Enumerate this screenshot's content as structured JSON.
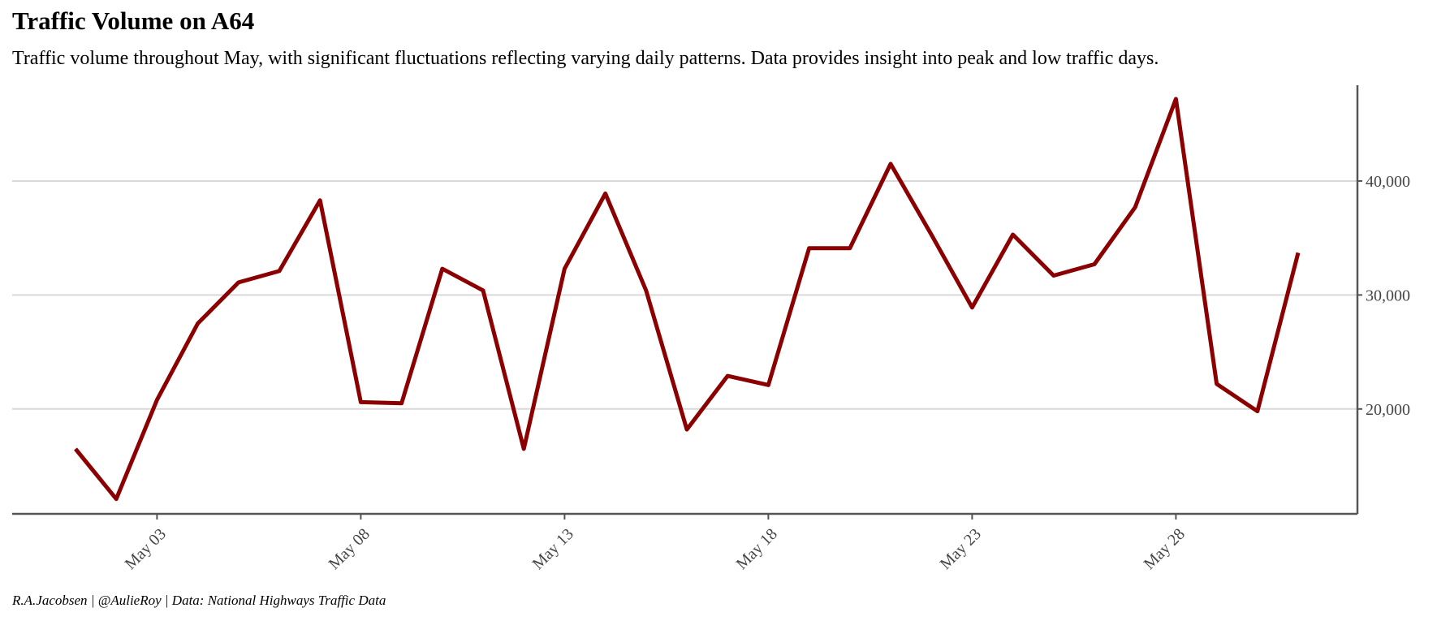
{
  "title": "Traffic Volume on A64",
  "subtitle": "Traffic volume throughout May, with significant fluctuations reflecting varying daily patterns. Data provides insight into peak and low traffic days.",
  "caption": "R.A.Jacobsen | @AulieRoy | Data: National Highways Traffic Data",
  "colors": {
    "line": "#8b0000",
    "grid": "#d9d9d9",
    "axis": "#555555",
    "tick_text": "#444444"
  },
  "chart_data": {
    "type": "line",
    "title": "Traffic Volume on A64",
    "subtitle": "Traffic volume throughout May, with significant fluctuations reflecting varying daily patterns. Data provides insight into peak and low traffic days.",
    "xlabel": "",
    "ylabel": "",
    "y_axis_position": "right",
    "grid": "horizontal major",
    "legend": "none",
    "xlim": [
      "May 01",
      "May 31"
    ],
    "ylim": [
      10800,
      48400
    ],
    "x_ticks": [
      "May 03",
      "May 08",
      "May 13",
      "May 18",
      "May 23",
      "May 28"
    ],
    "y_ticks": [
      20000,
      30000,
      40000
    ],
    "y_tick_labels": [
      "20,000",
      "30,000",
      "40,000"
    ],
    "x": [
      "May 01",
      "May 02",
      "May 03",
      "May 04",
      "May 05",
      "May 06",
      "May 07",
      "May 08",
      "May 09",
      "May 10",
      "May 11",
      "May 12",
      "May 13",
      "May 14",
      "May 15",
      "May 16",
      "May 17",
      "May 18",
      "May 19",
      "May 20",
      "May 21",
      "May 22",
      "May 23",
      "May 24",
      "May 25",
      "May 26",
      "May 27",
      "May 28",
      "May 29",
      "May 30",
      "May 31"
    ],
    "series": [
      {
        "values": [
          16500,
          12100,
          20800,
          27500,
          31100,
          32100,
          38300,
          20600,
          20500,
          32300,
          30400,
          16500,
          32300,
          38900,
          30400,
          18200,
          22900,
          22100,
          34100,
          34100,
          41500,
          35300,
          28900,
          35300,
          31700,
          32700,
          37700,
          47200,
          22200,
          19800,
          33700
        ]
      }
    ]
  }
}
